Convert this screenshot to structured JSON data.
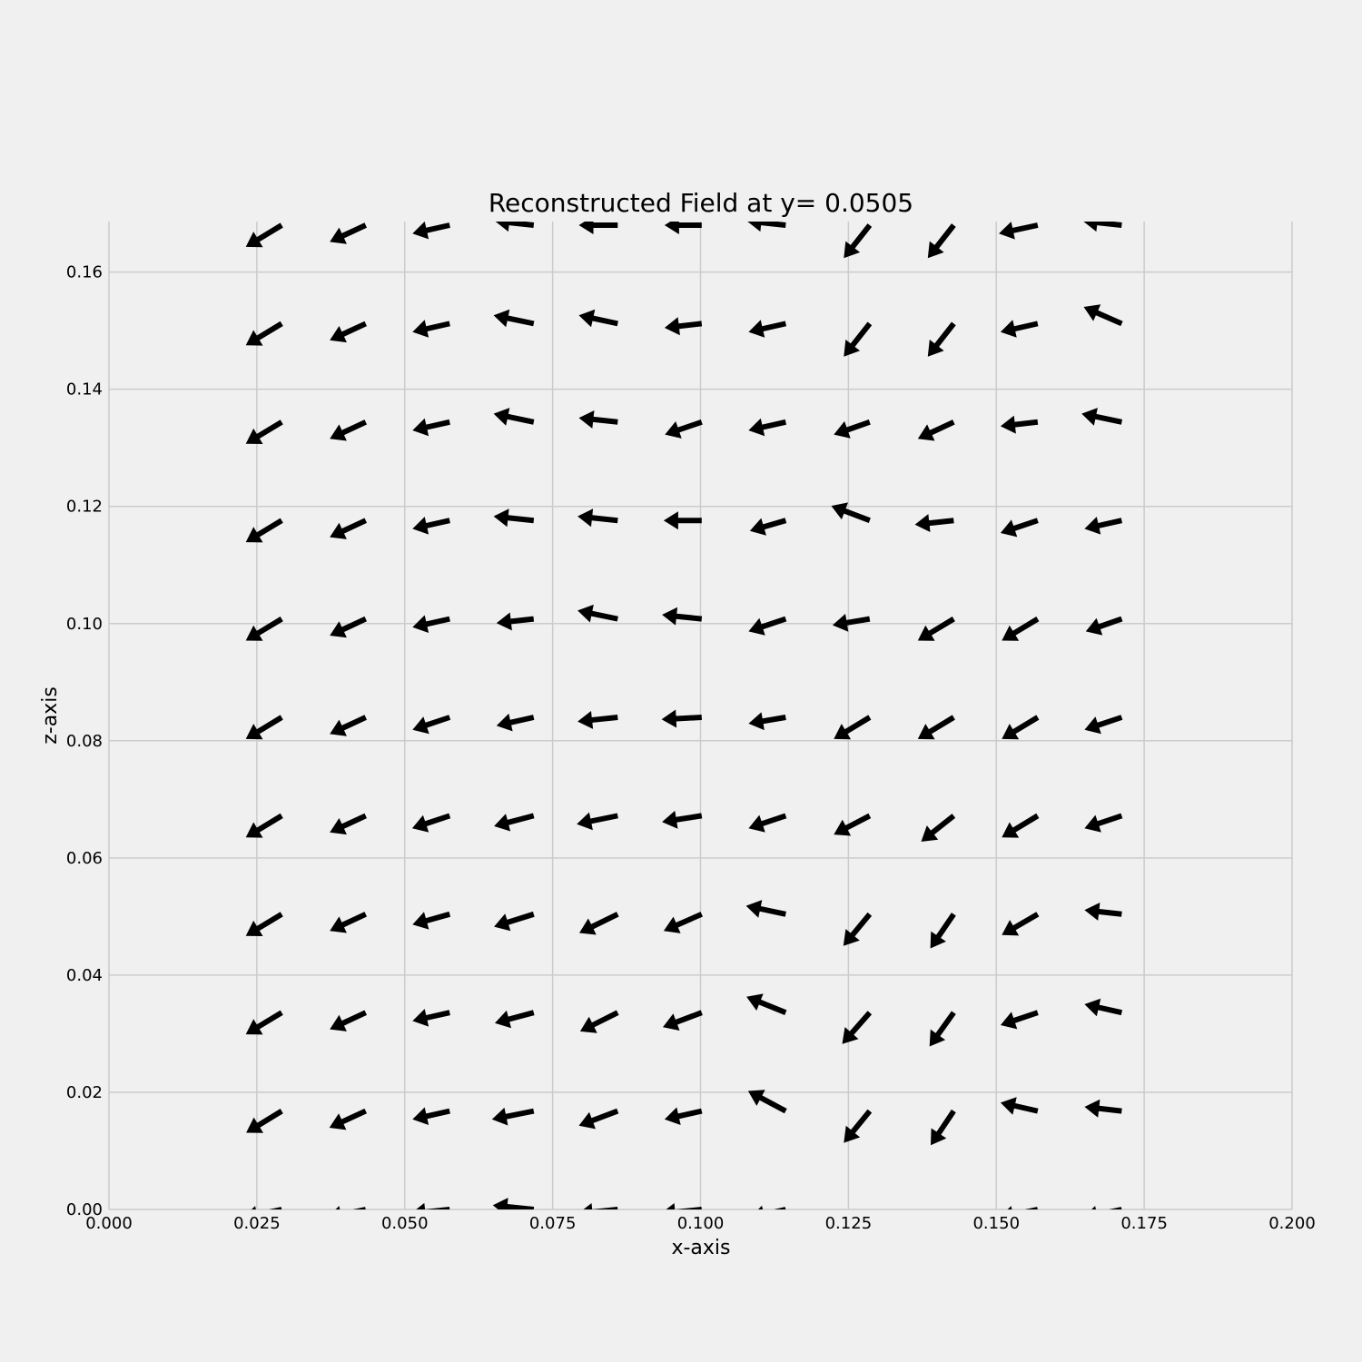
{
  "chart_data": {
    "type": "quiver",
    "title": "Reconstructed Field at y= 0.0505",
    "xlabel": "x-axis",
    "ylabel": "z-axis",
    "xlim": [
      0.0,
      0.2
    ],
    "ylim": [
      0.0,
      0.16862
    ],
    "grid": true,
    "x_ticks": [
      "0.000",
      "0.025",
      "0.050",
      "0.075",
      "0.100",
      "0.125",
      "0.150",
      "0.175",
      "0.200"
    ],
    "y_ticks": [
      "0.00",
      "0.02",
      "0.04",
      "0.06",
      "0.08",
      "0.10",
      "0.12",
      "0.14",
      "0.16"
    ],
    "x_tick_values": [
      0.0,
      0.025,
      0.05,
      0.075,
      0.1,
      0.125,
      0.15,
      0.175,
      0.2
    ],
    "y_tick_values": [
      0.0,
      0.02,
      0.04,
      0.06,
      0.08,
      0.1,
      0.12,
      0.14,
      0.16
    ],
    "x": [
      0.0292,
      0.0434,
      0.0576,
      0.0718,
      0.086,
      0.1002,
      0.1144,
      0.1286,
      0.1428,
      0.157,
      0.1712
    ],
    "z": [
      0.0,
      0.0168,
      0.0336,
      0.0504,
      0.0672,
      0.084,
      0.1008,
      0.1176,
      0.1344,
      0.1512,
      0.168
    ],
    "u": [
      [
        -0.93,
        -0.93,
        -0.93,
        -0.98,
        -0.95,
        -0.98,
        -0.86,
        0,
        0,
        -0.93,
        -0.93
      ],
      [
        -0.85,
        -0.87,
        -0.89,
        -1.0,
        -0.93,
        -0.89,
        -0.9,
        -0.62,
        -0.55,
        -0.89,
        -0.89
      ],
      [
        -0.86,
        -0.86,
        -0.89,
        -0.93,
        -0.9,
        -0.93,
        -0.94,
        -0.66,
        -0.58,
        -0.89,
        -0.89
      ],
      [
        -0.86,
        -0.86,
        -0.89,
        -0.95,
        -0.92,
        -0.91,
        -0.95,
        -0.63,
        -0.56,
        -0.86,
        -0.89
      ],
      [
        -0.86,
        -0.86,
        -0.9,
        -0.95,
        -0.98,
        -0.95,
        -0.89,
        -0.86,
        -0.78,
        -0.86,
        -0.89
      ],
      [
        -0.86,
        -0.86,
        -0.89,
        -0.89,
        -0.96,
        -0.96,
        -0.89,
        -0.86,
        -0.86,
        -0.86,
        -0.89
      ],
      [
        -0.86,
        -0.86,
        -0.89,
        -0.89,
        -0.96,
        -0.95,
        -0.89,
        -0.89,
        -0.86,
        -0.86,
        -0.86
      ],
      [
        -0.86,
        -0.86,
        -0.89,
        -0.96,
        -0.96,
        -0.91,
        -0.86,
        -0.92,
        -0.93,
        -0.89,
        -0.89
      ],
      [
        -0.86,
        -0.86,
        -0.89,
        -0.96,
        -0.93,
        -0.88,
        -0.89,
        -0.86,
        -0.86,
        -0.89,
        -0.96
      ],
      [
        -0.86,
        -0.86,
        -0.89,
        -0.96,
        -0.93,
        -0.89,
        -0.89,
        -0.62,
        -0.62,
        -0.89,
        -0.91
      ],
      [
        -0.86,
        -0.86,
        -0.89,
        -0.93,
        -0.93,
        -0.89,
        -0.93,
        -0.62,
        -0.62,
        -0.93,
        -0.93
      ]
    ],
    "v": [
      [
        -0.2,
        -0.2,
        -0.1,
        0.1,
        -0.1,
        -0.1,
        -0.2,
        0,
        0,
        -0.2,
        -0.2
      ],
      [
        -0.52,
        -0.4,
        -0.2,
        -0.2,
        -0.35,
        -0.2,
        0.48,
        -0.76,
        -0.82,
        0.2,
        0.1
      ],
      [
        -0.52,
        -0.4,
        -0.2,
        -0.25,
        -0.45,
        -0.35,
        0.38,
        -0.75,
        -0.81,
        -0.3,
        0.2
      ],
      [
        -0.52,
        -0.4,
        -0.25,
        -0.3,
        -0.45,
        -0.4,
        0.2,
        -0.76,
        -0.82,
        -0.5,
        0.1
      ],
      [
        -0.52,
        -0.4,
        -0.3,
        -0.25,
        -0.2,
        -0.15,
        -0.3,
        -0.45,
        -0.62,
        -0.52,
        -0.3
      ],
      [
        -0.52,
        -0.4,
        -0.3,
        -0.2,
        -0.1,
        -0.05,
        -0.15,
        -0.52,
        -0.52,
        -0.52,
        -0.3
      ],
      [
        -0.52,
        -0.4,
        -0.2,
        -0.1,
        0.2,
        0.1,
        -0.3,
        -0.15,
        -0.52,
        -0.52,
        -0.3
      ],
      [
        -0.52,
        -0.4,
        -0.2,
        0.1,
        0.1,
        0,
        -0.25,
        0.35,
        -0.1,
        -0.3,
        -0.2
      ],
      [
        -0.52,
        -0.4,
        -0.2,
        0.2,
        0.1,
        -0.3,
        -0.2,
        -0.3,
        -0.4,
        -0.1,
        0.2
      ],
      [
        -0.52,
        -0.4,
        -0.2,
        0.2,
        0.2,
        -0.1,
        -0.2,
        -0.79,
        -0.79,
        -0.2,
        0.4
      ],
      [
        -0.52,
        -0.4,
        -0.2,
        0.1,
        0,
        0,
        0.1,
        -0.79,
        -0.79,
        -0.2,
        0.1
      ]
    ]
  }
}
